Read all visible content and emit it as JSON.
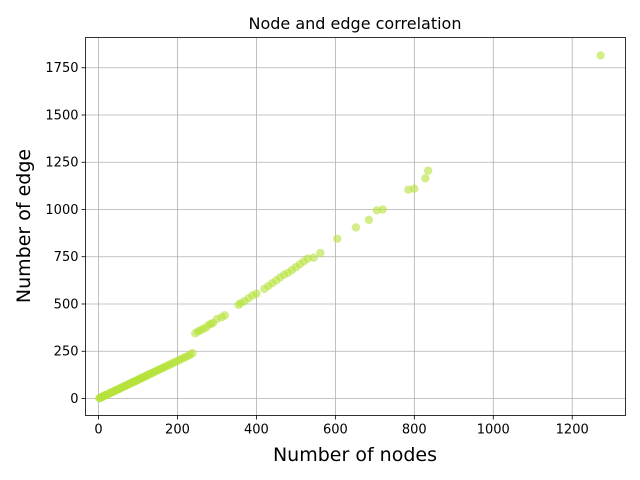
{
  "chart_data": {
    "type": "scatter",
    "title": "Node and edge correlation",
    "xlabel": "Number of nodes",
    "ylabel": "Number of edge",
    "xlim": [
      -33,
      1335
    ],
    "ylim": [
      -90,
      1910
    ],
    "xticks": [
      0,
      200,
      400,
      600,
      800,
      1000,
      1200
    ],
    "yticks": [
      0,
      250,
      500,
      750,
      1000,
      1250,
      1500,
      1750
    ],
    "grid": true,
    "color": "#b5e33b",
    "opacity": 0.6,
    "series": [
      {
        "name": "graphs",
        "points": [
          [
            2,
            1
          ],
          [
            4,
            3
          ],
          [
            6,
            5
          ],
          [
            8,
            8
          ],
          [
            10,
            9
          ],
          [
            12,
            11
          ],
          [
            14,
            14
          ],
          [
            16,
            15
          ],
          [
            18,
            18
          ],
          [
            20,
            19
          ],
          [
            22,
            21
          ],
          [
            25,
            24
          ],
          [
            28,
            27
          ],
          [
            30,
            30
          ],
          [
            33,
            32
          ],
          [
            36,
            35
          ],
          [
            39,
            38
          ],
          [
            42,
            41
          ],
          [
            45,
            44
          ],
          [
            48,
            47
          ],
          [
            51,
            50
          ],
          [
            54,
            53
          ],
          [
            57,
            56
          ],
          [
            60,
            59
          ],
          [
            63,
            62
          ],
          [
            66,
            65
          ],
          [
            69,
            68
          ],
          [
            72,
            71
          ],
          [
            75,
            74
          ],
          [
            78,
            77
          ],
          [
            81,
            80
          ],
          [
            84,
            83
          ],
          [
            87,
            86
          ],
          [
            90,
            89
          ],
          [
            93,
            92
          ],
          [
            96,
            95
          ],
          [
            99,
            98
          ],
          [
            102,
            101
          ],
          [
            105,
            104
          ],
          [
            108,
            107
          ],
          [
            111,
            110
          ],
          [
            114,
            113
          ],
          [
            117,
            116
          ],
          [
            120,
            119
          ],
          [
            123,
            122
          ],
          [
            126,
            125
          ],
          [
            130,
            129
          ],
          [
            134,
            133
          ],
          [
            138,
            137
          ],
          [
            142,
            141
          ],
          [
            146,
            145
          ],
          [
            150,
            149
          ],
          [
            154,
            153
          ],
          [
            158,
            157
          ],
          [
            162,
            161
          ],
          [
            166,
            165
          ],
          [
            170,
            169
          ],
          [
            175,
            174
          ],
          [
            180,
            179
          ],
          [
            185,
            184
          ],
          [
            190,
            189
          ],
          [
            196,
            195
          ],
          [
            202,
            201
          ],
          [
            208,
            207
          ],
          [
            214,
            213
          ],
          [
            220,
            219
          ],
          [
            226,
            225
          ],
          [
            232,
            231
          ],
          [
            238,
            240
          ],
          [
            245,
            345
          ],
          [
            252,
            355
          ],
          [
            258,
            360
          ],
          [
            265,
            368
          ],
          [
            272,
            375
          ],
          [
            280,
            390
          ],
          [
            285,
            395
          ],
          [
            290,
            400
          ],
          [
            300,
            420
          ],
          [
            312,
            430
          ],
          [
            320,
            440
          ],
          [
            355,
            495
          ],
          [
            360,
            505
          ],
          [
            370,
            515
          ],
          [
            380,
            530
          ],
          [
            390,
            545
          ],
          [
            400,
            555
          ],
          [
            420,
            580
          ],
          [
            430,
            595
          ],
          [
            440,
            610
          ],
          [
            450,
            625
          ],
          [
            460,
            640
          ],
          [
            470,
            655
          ],
          [
            480,
            665
          ],
          [
            490,
            680
          ],
          [
            500,
            695
          ],
          [
            510,
            710
          ],
          [
            520,
            725
          ],
          [
            530,
            740
          ],
          [
            545,
            745
          ],
          [
            562,
            770
          ],
          [
            605,
            845
          ],
          [
            652,
            905
          ],
          [
            685,
            945
          ],
          [
            705,
            995
          ],
          [
            720,
            1000
          ],
          [
            785,
            1105
          ],
          [
            800,
            1110
          ],
          [
            828,
            1165
          ],
          [
            835,
            1205
          ],
          [
            1272,
            1815
          ]
        ]
      }
    ]
  }
}
